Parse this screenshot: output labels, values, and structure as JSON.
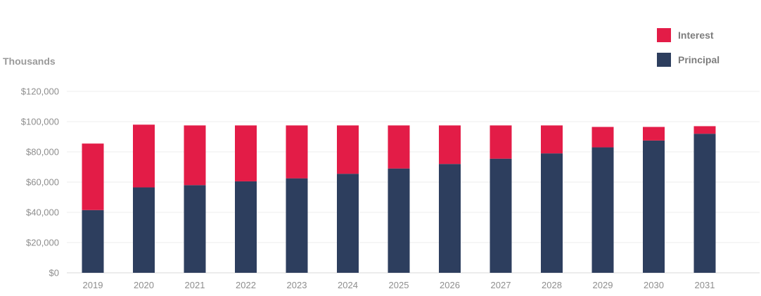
{
  "chart_data": {
    "type": "bar",
    "stacked": true,
    "ylabel": "Thousands",
    "ylim": [
      0,
      120000
    ],
    "yticks": [
      0,
      20000,
      40000,
      60000,
      80000,
      100000,
      120000
    ],
    "ytick_labels": [
      "$0",
      "$20,000",
      "$40,000",
      "$60,000",
      "$80,000",
      "$100,000",
      "$120,000"
    ],
    "grid": true,
    "legend_position": "top-right",
    "categories": [
      "2019",
      "2020",
      "2021",
      "2022",
      "2023",
      "2024",
      "2025",
      "2026",
      "2027",
      "2028",
      "2029",
      "2030",
      "2031"
    ],
    "series": [
      {
        "name": "Principal",
        "color": "#2d3e5e",
        "values": [
          41500,
          56500,
          58000,
          60500,
          62500,
          65500,
          69000,
          72000,
          75500,
          79000,
          83000,
          87500,
          92000
        ]
      },
      {
        "name": "Interest",
        "color": "#e31c47",
        "values": [
          44000,
          41500,
          39500,
          37000,
          35000,
          32000,
          28500,
          25500,
          22000,
          18500,
          13500,
          9000,
          5000
        ]
      }
    ],
    "legend": [
      {
        "name": "Interest",
        "color": "#e31c47"
      },
      {
        "name": "Principal",
        "color": "#2d3e5e"
      }
    ]
  }
}
